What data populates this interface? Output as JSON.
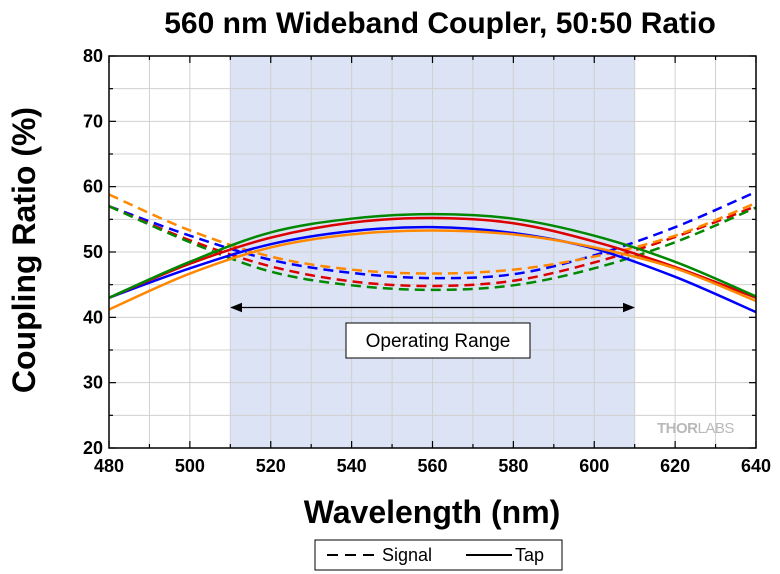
{
  "chart_data": {
    "type": "line",
    "title": "560 nm Wideband Coupler, 50:50 Ratio",
    "xlabel": "Wavelength (nm)",
    "ylabel": "Coupling Ratio (%)",
    "xlim": [
      480,
      640
    ],
    "ylim": [
      20,
      80
    ],
    "x_ticks": [
      480,
      500,
      520,
      540,
      560,
      580,
      600,
      620,
      640
    ],
    "y_ticks": [
      20,
      30,
      40,
      50,
      60,
      70,
      80
    ],
    "grid": true,
    "legend_position": "bottom-center",
    "legend": [
      {
        "label": "Signal",
        "style": "dashed"
      },
      {
        "label": "Tap",
        "style": "solid"
      }
    ],
    "operating_range": {
      "x": [
        510,
        610
      ],
      "label": "Operating Range",
      "fill": "#dce3f5"
    },
    "watermark": {
      "thor": "THOR",
      "labs": "LABS"
    },
    "series": [
      {
        "color": "#0000ff",
        "style": "dashed",
        "x": [
          480,
          500,
          520,
          540,
          560,
          580,
          600,
          620,
          640
        ],
        "y": [
          57.0,
          52.5,
          48.8,
          46.8,
          46.0,
          46.6,
          49.5,
          53.8,
          59.2
        ]
      },
      {
        "color": "#dd0000",
        "style": "dashed",
        "x": [
          480,
          500,
          520,
          540,
          560,
          580,
          600,
          620,
          640
        ],
        "y": [
          57.0,
          51.8,
          47.8,
          45.5,
          44.8,
          45.6,
          48.4,
          52.3,
          57.0
        ]
      },
      {
        "color": "#ff8800",
        "style": "dashed",
        "x": [
          480,
          500,
          520,
          540,
          560,
          580,
          600,
          620,
          640
        ],
        "y": [
          58.8,
          53.3,
          49.3,
          47.3,
          46.7,
          47.3,
          49.3,
          52.5,
          57.5
        ]
      },
      {
        "color": "#008800",
        "style": "dashed",
        "x": [
          480,
          500,
          520,
          540,
          560,
          580,
          600,
          620,
          640
        ],
        "y": [
          57.0,
          51.5,
          47.0,
          44.9,
          44.2,
          44.9,
          47.5,
          51.5,
          56.8
        ]
      },
      {
        "color": "#0000ff",
        "style": "solid",
        "x": [
          480,
          500,
          520,
          540,
          560,
          580,
          600,
          620,
          640
        ],
        "y": [
          43.0,
          47.5,
          51.2,
          53.2,
          53.8,
          52.9,
          50.5,
          46.2,
          40.8
        ]
      },
      {
        "color": "#dd0000",
        "style": "solid",
        "x": [
          480,
          500,
          520,
          540,
          560,
          580,
          600,
          620,
          640
        ],
        "y": [
          43.0,
          48.2,
          52.2,
          54.5,
          55.2,
          54.4,
          51.6,
          47.7,
          43.0
        ]
      },
      {
        "color": "#ff8800",
        "style": "solid",
        "x": [
          480,
          500,
          520,
          540,
          560,
          580,
          600,
          620,
          640
        ],
        "y": [
          41.2,
          46.7,
          50.7,
          52.7,
          53.3,
          52.7,
          50.7,
          47.5,
          42.5
        ]
      },
      {
        "color": "#008800",
        "style": "solid",
        "x": [
          480,
          500,
          520,
          540,
          560,
          580,
          600,
          620,
          640
        ],
        "y": [
          43.0,
          48.5,
          53.0,
          55.1,
          55.8,
          55.1,
          52.5,
          48.5,
          43.2
        ]
      }
    ]
  }
}
